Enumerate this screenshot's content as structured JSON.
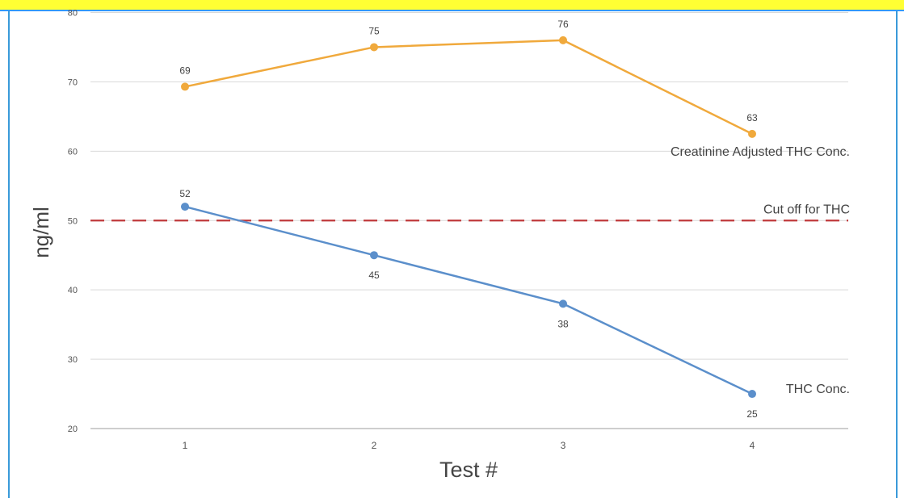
{
  "chart_data": {
    "type": "line",
    "title": "",
    "xlabel": "Test #",
    "ylabel": "ng/ml",
    "x": [
      1,
      2,
      3,
      4
    ],
    "ylim": [
      20,
      80
    ],
    "yticks": [
      20,
      30,
      40,
      50,
      60,
      70,
      80
    ],
    "grid": true,
    "legend": "none",
    "series": [
      {
        "name": "Creatinine Adjusted THC Conc.",
        "values": [
          69,
          75,
          76,
          63
        ],
        "plotted": [
          69.3,
          75,
          76,
          62.5
        ],
        "color": "#f0a93c"
      },
      {
        "name": "THC Conc.",
        "values": [
          52,
          45,
          38,
          25
        ],
        "plotted": [
          52,
          45,
          38,
          25
        ],
        "color": "#5b8fcb"
      }
    ],
    "reference_lines": [
      {
        "label": "Cut off for THC",
        "y": 50,
        "color": "#c0393b",
        "style": "dashed"
      }
    ]
  },
  "theme": {
    "header_band": "#ffff33",
    "header_border": "#3399ff",
    "panel_border": "#3a9ad9",
    "grid": "#d9d9d9",
    "axis": "#bdbdbd",
    "tick_text": "#555555",
    "label_text": "#444444"
  }
}
